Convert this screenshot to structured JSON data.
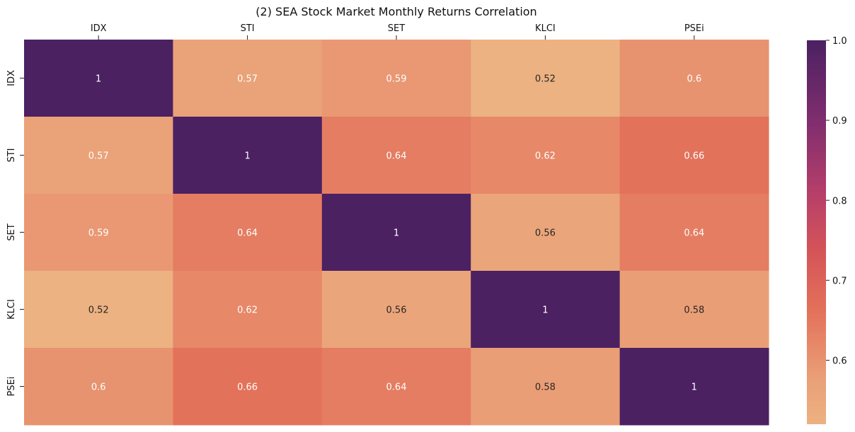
{
  "chart_data": {
    "type": "heatmap",
    "title": "(2) SEA Stock Market Monthly Returns Correlation",
    "x_labels": [
      "IDX",
      "STI",
      "SET",
      "KLCI",
      "PSEi"
    ],
    "y_labels": [
      "IDX",
      "STI",
      "SET",
      "KLCI",
      "PSEi"
    ],
    "x_label_position": "top",
    "values": [
      [
        1,
        0.57,
        0.59,
        0.52,
        0.6
      ],
      [
        0.57,
        1,
        0.64,
        0.62,
        0.66
      ],
      [
        0.59,
        0.64,
        1,
        0.56,
        0.64
      ],
      [
        0.52,
        0.62,
        0.56,
        1,
        0.58
      ],
      [
        0.6,
        0.66,
        0.64,
        0.58,
        1
      ]
    ],
    "annotations": [
      [
        "1",
        "0.57",
        "0.59",
        "0.52",
        "0.6"
      ],
      [
        "0.57",
        "1",
        "0.64",
        "0.62",
        "0.66"
      ],
      [
        "0.59",
        "0.64",
        "1",
        "0.56",
        "0.64"
      ],
      [
        "0.52",
        "0.62",
        "0.56",
        "1",
        "0.58"
      ],
      [
        "0.6",
        "0.66",
        "0.64",
        "0.58",
        "1"
      ]
    ],
    "colormap": "flare",
    "vmin": 0.52,
    "vmax": 1.0,
    "colorbar": {
      "ticks": [
        0.6,
        0.7,
        0.8,
        0.9,
        1.0
      ],
      "tick_labels": [
        "0.6",
        "0.7",
        "0.8",
        "0.9",
        "1.0"
      ],
      "position": "right"
    },
    "grid": false
  }
}
